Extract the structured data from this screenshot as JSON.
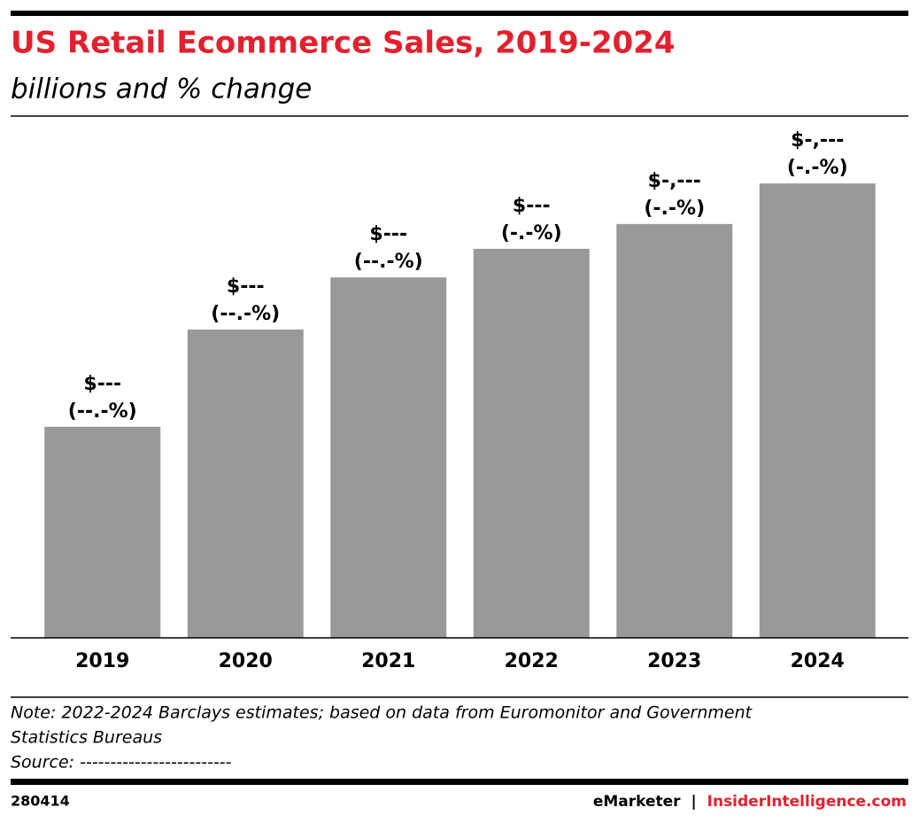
{
  "chart_data": {
    "type": "bar",
    "title": "US Retail Ecommerce Sales, 2019-2024",
    "subtitle": "billions and % change",
    "categories": [
      "2019",
      "2020",
      "2021",
      "2022",
      "2023",
      "2024"
    ],
    "values": [
      510,
      745,
      871,
      940,
      1000,
      1098
    ],
    "value_labels": [
      "$---",
      "$---",
      "$---",
      "$---",
      "$-,---",
      "$-,---"
    ],
    "change_labels": [
      "(--.-%)",
      "(--.-%)",
      "(--.-%)",
      "(-.-%)",
      "(-.-%)",
      "(-.-%)"
    ],
    "color": "#999999",
    "ylim": [
      0,
      1263
    ],
    "note": [
      "Note: 2022-2024 Barclays estimates; based on data from Euromonitor and Government",
      "Statistics Bureaus"
    ],
    "source": "Source: -------------------------",
    "chart_id": "280414",
    "footer": {
      "brand": "eMarketer",
      "separator": "|",
      "site": "InsiderIntelligence.com"
    }
  }
}
